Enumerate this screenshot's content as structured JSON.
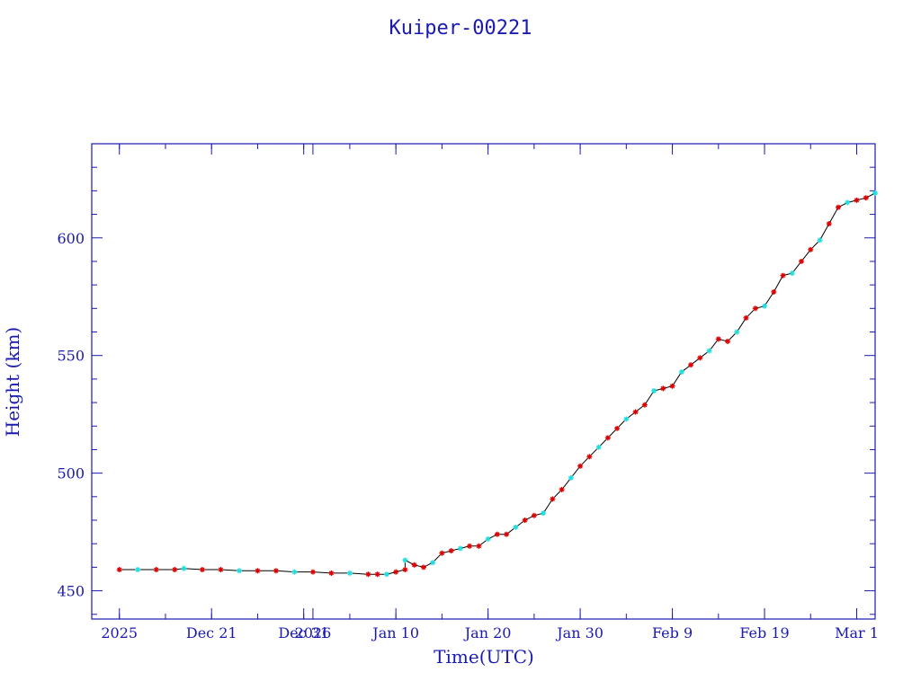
{
  "chart_data": {
    "type": "line",
    "title": "Kuiper-00221",
    "xlabel": "Time(UTC)",
    "ylabel": "Height (km)",
    "x_unit": "date (UTC)",
    "xlim": [
      "2025-12-08",
      "2026-03-03"
    ],
    "ylim": [
      438,
      640
    ],
    "x_major_ticks": [
      {
        "date": "2025-12-11",
        "label": "2025"
      },
      {
        "date": "2025-12-21",
        "label": "Dec 21"
      },
      {
        "date": "2025-12-31",
        "label": "Dec 31"
      },
      {
        "date": "2026-01-01",
        "label": "2026"
      },
      {
        "date": "2026-01-10",
        "label": "Jan 10"
      },
      {
        "date": "2026-01-20",
        "label": "Jan 20"
      },
      {
        "date": "2026-01-30",
        "label": "Jan 30"
      },
      {
        "date": "2026-02-09",
        "label": "Feb  9"
      },
      {
        "date": "2026-02-19",
        "label": "Feb 19"
      },
      {
        "date": "2026-03-01",
        "label": "Mar  1"
      }
    ],
    "y_major_ticks": [
      450,
      500,
      550,
      600
    ],
    "grid": false,
    "colors": {
      "axes": "#1a1ab0",
      "line": "#000000",
      "marker_primary": "#dd0000",
      "marker_secondary": "#22dddd"
    },
    "series": [
      {
        "marker": "asterisk",
        "points": [
          [
            "2025-12-11",
            459
          ],
          [
            "2025-12-13",
            459
          ],
          [
            "2025-12-15",
            459
          ],
          [
            "2025-12-17",
            459
          ],
          [
            "2025-12-18",
            459.5
          ],
          [
            "2025-12-20",
            459
          ],
          [
            "2025-12-22",
            459
          ],
          [
            "2025-12-24",
            458.5
          ],
          [
            "2025-12-26",
            458.5
          ],
          [
            "2025-12-28",
            458.5
          ],
          [
            "2025-12-30",
            458
          ],
          [
            "2026-01-01",
            458
          ],
          [
            "2026-01-03",
            457.5
          ],
          [
            "2026-01-05",
            457.5
          ],
          [
            "2026-01-07",
            457
          ],
          [
            "2026-01-08",
            457
          ],
          [
            "2026-01-09",
            457
          ],
          [
            "2026-01-10",
            458
          ],
          [
            "2026-01-11",
            459
          ],
          [
            "2026-01-11",
            463
          ],
          [
            "2026-01-12",
            461
          ],
          [
            "2026-01-13",
            460
          ],
          [
            "2026-01-14",
            462
          ],
          [
            "2026-01-15",
            466
          ],
          [
            "2026-01-16",
            467
          ],
          [
            "2026-01-17",
            468
          ],
          [
            "2026-01-18",
            469
          ],
          [
            "2026-01-19",
            469
          ],
          [
            "2026-01-20",
            472
          ],
          [
            "2026-01-21",
            474
          ],
          [
            "2026-01-22",
            474
          ],
          [
            "2026-01-23",
            477
          ],
          [
            "2026-01-24",
            480
          ],
          [
            "2026-01-25",
            482
          ],
          [
            "2026-01-26",
            483
          ],
          [
            "2026-01-27",
            489
          ],
          [
            "2026-01-28",
            493
          ],
          [
            "2026-01-29",
            498
          ],
          [
            "2026-01-30",
            503
          ],
          [
            "2026-01-31",
            507
          ],
          [
            "2026-02-01",
            511
          ],
          [
            "2026-02-02",
            515
          ],
          [
            "2026-02-03",
            519
          ],
          [
            "2026-02-04",
            523
          ],
          [
            "2026-02-05",
            526
          ],
          [
            "2026-02-06",
            529
          ],
          [
            "2026-02-07",
            535
          ],
          [
            "2026-02-08",
            536
          ],
          [
            "2026-02-09",
            537
          ],
          [
            "2026-02-10",
            543
          ],
          [
            "2026-02-11",
            546
          ],
          [
            "2026-02-12",
            549
          ],
          [
            "2026-02-13",
            552
          ],
          [
            "2026-02-14",
            557
          ],
          [
            "2026-02-15",
            556
          ],
          [
            "2026-02-16",
            560
          ],
          [
            "2026-02-17",
            566
          ],
          [
            "2026-02-18",
            570
          ],
          [
            "2026-02-19",
            571
          ],
          [
            "2026-02-20",
            577
          ],
          [
            "2026-02-21",
            584
          ],
          [
            "2026-02-22",
            585
          ],
          [
            "2026-02-23",
            590
          ],
          [
            "2026-02-24",
            595
          ],
          [
            "2026-02-25",
            599
          ],
          [
            "2026-02-26",
            606
          ],
          [
            "2026-02-27",
            613
          ],
          [
            "2026-02-28",
            615
          ],
          [
            "2026-03-01",
            616
          ],
          [
            "2026-03-02",
            617
          ],
          [
            "2026-03-03",
            619
          ]
        ]
      }
    ]
  }
}
